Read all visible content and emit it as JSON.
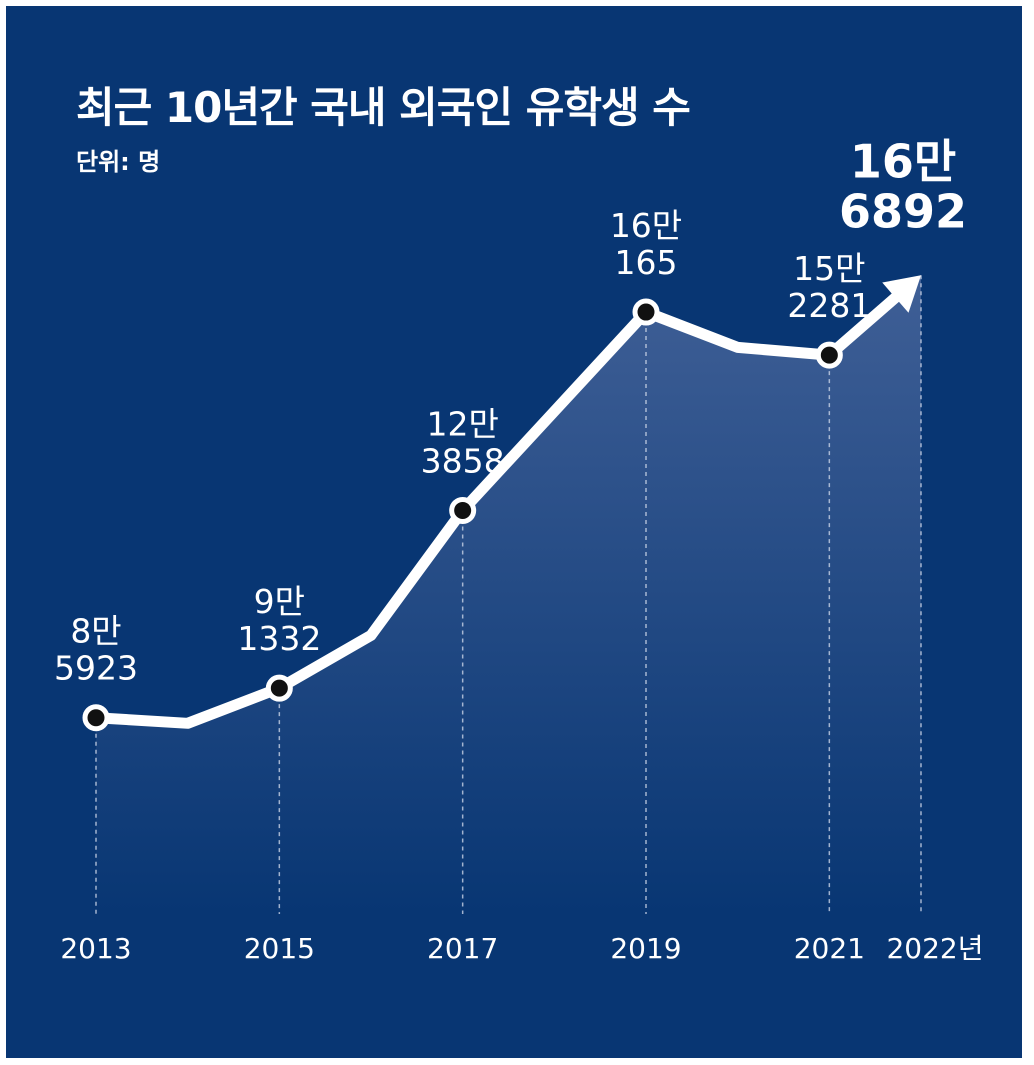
{
  "title": "최근 10년간 국내 외국인 유학생 수",
  "unit_label": "단위: 명",
  "colors": {
    "background": "#083673",
    "line": "#ffffff",
    "area_top": "#3f5f96",
    "area_bottom": "#083673",
    "marker_fill": "#111111"
  },
  "chart_data": {
    "type": "line",
    "title": "최근 10년간 국내 외국인 유학생 수",
    "ylabel": "단위: 명",
    "xlabel": "",
    "x": [
      2013,
      2014,
      2015,
      2016,
      2017,
      2018,
      2019,
      2020,
      2021,
      2022
    ],
    "values": [
      85923,
      84900,
      91332,
      101000,
      123858,
      142000,
      160165,
      153700,
      152281,
      166892
    ],
    "ylim": [
      50000,
      175000
    ],
    "tick_labels": [
      "2013",
      "2015",
      "2017",
      "2019",
      "2021",
      "2022년"
    ],
    "tick_years": [
      2013,
      2015,
      2017,
      2019,
      2021,
      2022
    ],
    "annotations": [
      {
        "year": 2013,
        "line1": "8만",
        "line2": "5923"
      },
      {
        "year": 2015,
        "line1": "9만",
        "line2": "1332"
      },
      {
        "year": 2017,
        "line1": "12만",
        "line2": "3858"
      },
      {
        "year": 2019,
        "line1": "16만",
        "line2": "165"
      },
      {
        "year": 2021,
        "line1": "15만",
        "line2": "2281"
      },
      {
        "year": 2022,
        "line1": "16만",
        "line2": "6892",
        "emphasis": true
      }
    ],
    "grid": false,
    "legend": "none"
  }
}
